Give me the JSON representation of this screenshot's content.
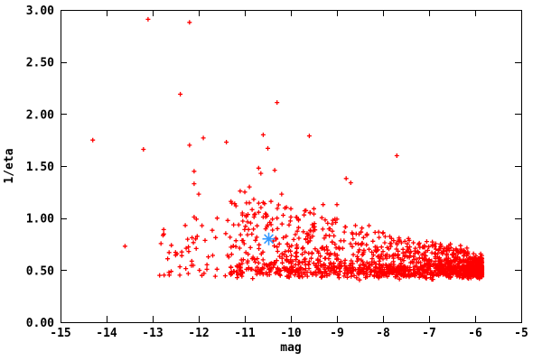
{
  "chart_data": {
    "type": "scatter",
    "title": "",
    "xlabel": "mag",
    "ylabel": "1/eta",
    "xlim": [
      -15,
      -5
    ],
    "ylim": [
      0.0,
      3.0
    ],
    "grid": "off",
    "legend": "none",
    "x_tick_labels": [
      "-15",
      "-14",
      "-13",
      "-12",
      "-11",
      "-10",
      "-9",
      "-8",
      "-7",
      "-6",
      "-5"
    ],
    "x_tick_values": [
      -15,
      -14,
      -13,
      -12,
      -11,
      -10,
      -9,
      -8,
      -7,
      -6,
      -5
    ],
    "y_tick_labels": [
      "0.00",
      "0.50",
      "1.00",
      "1.50",
      "2.00",
      "2.50",
      "3.00"
    ],
    "y_tick_values": [
      0.0,
      0.5,
      1.0,
      1.5,
      2.0,
      2.5,
      3.0
    ],
    "colors": {
      "background": "#ffffff",
      "axis": "#000000",
      "points": "#ff0000",
      "highlight": "#3399ff"
    },
    "marker": "plus",
    "highlight_point": {
      "marker": "asterisk",
      "mag": -10.48,
      "one_over_eta": 0.8
    },
    "outlier_points": [
      [
        -13.1,
        2.91
      ],
      [
        -12.2,
        2.88
      ],
      [
        -12.4,
        2.19
      ],
      [
        -10.3,
        2.11
      ],
      [
        -14.3,
        1.75
      ],
      [
        -13.2,
        1.66
      ],
      [
        -12.2,
        1.7
      ],
      [
        -11.9,
        1.77
      ],
      [
        -11.4,
        1.73
      ],
      [
        -10.6,
        1.8
      ],
      [
        -10.5,
        1.67
      ],
      [
        -9.6,
        1.79
      ],
      [
        -7.7,
        1.6
      ],
      [
        -12.1,
        1.45
      ],
      [
        -10.7,
        1.48
      ],
      [
        -10.65,
        1.43
      ],
      [
        -10.35,
        1.46
      ],
      [
        -12.1,
        1.33
      ],
      [
        -8.8,
        1.38
      ],
      [
        -8.7,
        1.34
      ],
      [
        -11.1,
        1.26
      ],
      [
        -11.0,
        1.25
      ],
      [
        -10.9,
        1.3
      ],
      [
        -12.0,
        1.23
      ],
      [
        -10.2,
        1.23
      ],
      [
        -11.3,
        1.16
      ],
      [
        -10.6,
        1.15
      ],
      [
        -9.3,
        1.13
      ],
      [
        -9.0,
        1.13
      ],
      [
        -10.0,
        1.09
      ],
      [
        -9.7,
        1.07
      ],
      [
        -9.5,
        1.09
      ],
      [
        -9.5,
        1.04
      ],
      [
        -11.05,
        1.03
      ],
      [
        -10.8,
        1.01
      ],
      [
        -10.6,
        1.01
      ],
      [
        -10.4,
        0.99
      ],
      [
        -10.3,
        1.0
      ],
      [
        -10.0,
        1.01
      ],
      [
        -12.1,
        1.01
      ],
      [
        -12.05,
        0.99
      ],
      [
        -11.6,
        1.0
      ],
      [
        -9.0,
        0.99
      ],
      [
        -9.2,
        0.95
      ],
      [
        -13.6,
        0.73
      ],
      [
        -12.76,
        0.89
      ]
    ],
    "dense_cloud": {
      "description": "dense band of red points, 1/eta ~0.40-0.95, center ~0.52, densest and tightest near mag -6, fanning wider toward mag -11.4, sparse tail to mag -12.85",
      "seed": 20,
      "main": {
        "n": 1500,
        "mag_right": -5.85,
        "mag_span": 5.55,
        "mag_pow": 1.8,
        "y_base": 0.435,
        "y_core": 0.095,
        "tail_base": 0.16,
        "tail_slope": 0.62,
        "tail_pow": 2.6,
        "dip": 0.035,
        "dip_pow": 3,
        "y_min": 0.36,
        "y_max": 1.18
      },
      "left_tail": {
        "n": 48,
        "mag_min": -12.85,
        "mag_span": 1.45,
        "y_base": 0.44,
        "y_span": 0.52,
        "y_pow": 1.4
      }
    }
  }
}
